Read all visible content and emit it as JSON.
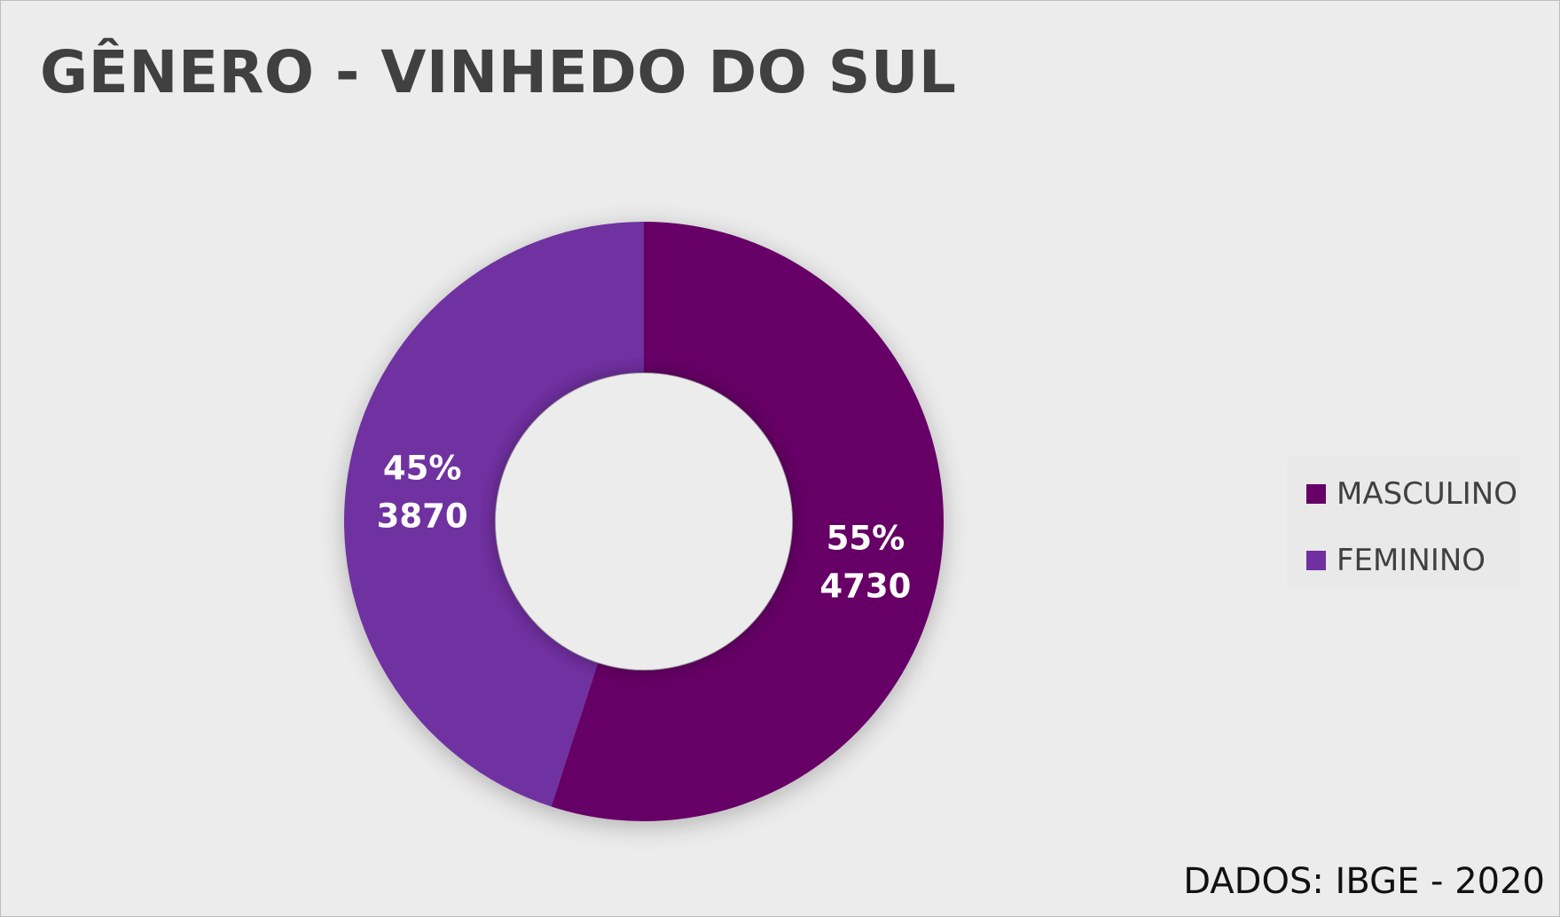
{
  "chart_data": {
    "type": "pie",
    "variant": "donut",
    "title": "GÊNERO - VINHEDO DO SUL",
    "series": [
      {
        "name": "MASCULINO",
        "value": 4730,
        "percent_label": "55%",
        "value_label": "4730",
        "color": "#660066"
      },
      {
        "name": "FEMININO",
        "value": 3870,
        "percent_label": "45%",
        "value_label": "3870",
        "color": "#7030a0"
      }
    ],
    "legend_placement": "right",
    "footnote": "DADOS: IBGE - 2020"
  }
}
